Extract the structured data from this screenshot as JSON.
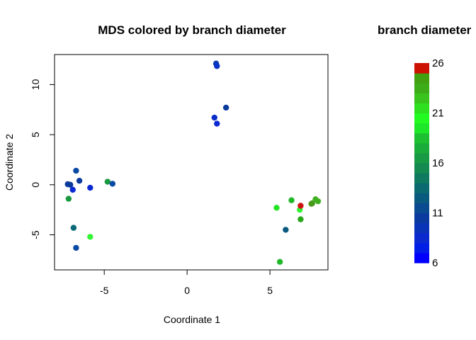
{
  "chart_data": {
    "type": "scatter",
    "title": "MDS colored by branch diameter",
    "xlabel": "Coordinate 1",
    "ylabel": "Coordinate 2",
    "xlim": [
      -8.0,
      8.5
    ],
    "ylim": [
      -8.5,
      13.0
    ],
    "xticks": [
      -5,
      0,
      5
    ],
    "yticks": [
      -5,
      0,
      5,
      10
    ],
    "xtick_labels": [
      "-5",
      "0",
      "5"
    ],
    "ytick_labels": [
      "-5",
      "0",
      "5",
      "10"
    ],
    "grid": false,
    "points": [
      {
        "x": 1.75,
        "y": 12.1,
        "color": "#0a3bb8"
      },
      {
        "x": 1.8,
        "y": 11.85,
        "color": "#0a32c4"
      },
      {
        "x": 2.35,
        "y": 7.7,
        "color": "#0a3a9c"
      },
      {
        "x": 1.65,
        "y": 6.7,
        "color": "#0a2fc8"
      },
      {
        "x": 1.8,
        "y": 6.1,
        "color": "#0a28d4"
      },
      {
        "x": -7.2,
        "y": 0.05,
        "color": "#0a3a9c"
      },
      {
        "x": -7.05,
        "y": 0.0,
        "color": "#0a3a9c"
      },
      {
        "x": -6.7,
        "y": 1.4,
        "color": "#0a4aa4"
      },
      {
        "x": -6.5,
        "y": 0.4,
        "color": "#0a3a9c"
      },
      {
        "x": -6.9,
        "y": -0.5,
        "color": "#0a28d4"
      },
      {
        "x": -5.85,
        "y": -0.3,
        "color": "#0a28d4"
      },
      {
        "x": -4.8,
        "y": 0.3,
        "color": "#1a9a40"
      },
      {
        "x": -4.5,
        "y": 0.1,
        "color": "#0a4aa4"
      },
      {
        "x": -7.15,
        "y": -1.4,
        "color": "#1a9a40"
      },
      {
        "x": -6.85,
        "y": -4.3,
        "color": "#0a6a7a"
      },
      {
        "x": -5.85,
        "y": -5.2,
        "color": "#33f533"
      },
      {
        "x": -6.7,
        "y": -6.3,
        "color": "#0a4aa4"
      },
      {
        "x": 5.4,
        "y": -2.3,
        "color": "#22e322"
      },
      {
        "x": 6.3,
        "y": -1.55,
        "color": "#20b828"
      },
      {
        "x": 6.8,
        "y": -2.5,
        "color": "#33f533"
      },
      {
        "x": 6.85,
        "y": -2.1,
        "color": "#cc1111"
      },
      {
        "x": 6.85,
        "y": -3.45,
        "color": "#2aa81c"
      },
      {
        "x": 5.95,
        "y": -4.5,
        "color": "#0a5a80"
      },
      {
        "x": 5.6,
        "y": -7.7,
        "color": "#20b828"
      },
      {
        "x": 7.5,
        "y": -1.9,
        "color": "#4a9a1a"
      },
      {
        "x": 7.55,
        "y": -1.85,
        "color": "#4a9a1a"
      },
      {
        "x": 7.75,
        "y": -1.45,
        "color": "#40b020"
      },
      {
        "x": 7.9,
        "y": -1.65,
        "color": "#40b020"
      }
    ],
    "colorbar": {
      "title": "branch diameter",
      "range": [
        6,
        26
      ],
      "ticks": [
        6,
        11,
        16,
        21,
        26
      ],
      "tick_labels": [
        "6",
        "11",
        "16",
        "21",
        "26"
      ],
      "colors": [
        "#0000ff",
        "#001ee6",
        "#0a2ad0",
        "#0a34b8",
        "#0a3aa0",
        "#0a4a90",
        "#0a5a80",
        "#0a6a70",
        "#107a60",
        "#148a50",
        "#189a45",
        "#1aac3a",
        "#1cc030",
        "#1ee628",
        "#22fa22",
        "#2ee020",
        "#38c41c",
        "#3cac18",
        "#40a010",
        "#cc1100"
      ]
    }
  }
}
